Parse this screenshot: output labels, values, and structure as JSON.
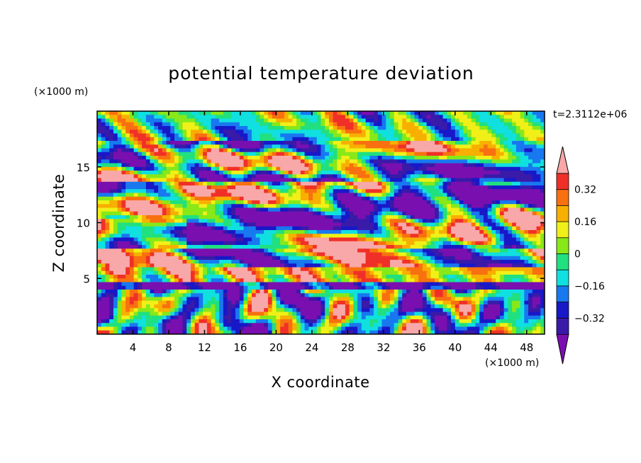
{
  "chart_data": {
    "type": "heatmap",
    "title": "potential temperature deviation",
    "xlabel": "X coordinate",
    "ylabel": "Z coordinate",
    "x_unit": "(×1000 m)",
    "y_unit": "(×1000 m)",
    "time_label": "t=2.3112e+06",
    "xlim": [
      0,
      50
    ],
    "ylim": [
      0,
      20
    ],
    "x_ticks": [
      "4",
      "8",
      "12",
      "16",
      "20",
      "24",
      "28",
      "32",
      "36",
      "40",
      "44",
      "48"
    ],
    "y_ticks": [
      "5",
      "10",
      "15"
    ],
    "colorbar": {
      "ticks": [
        "0.32",
        "0.16",
        "0",
        "−0.16",
        "−0.32"
      ],
      "levels": [
        -0.4,
        -0.32,
        -0.24,
        -0.16,
        -0.08,
        0,
        0.08,
        0.16,
        0.24,
        0.32,
        0.4
      ],
      "colors": [
        "#7a0fb0",
        "#3a1aa8",
        "#1818c8",
        "#1878f0",
        "#10e0e0",
        "#20e080",
        "#88e818",
        "#f0f018",
        "#f8b000",
        "#f87010",
        "#f03028",
        "#f8a8a8"
      ],
      "extend": "both"
    }
  }
}
